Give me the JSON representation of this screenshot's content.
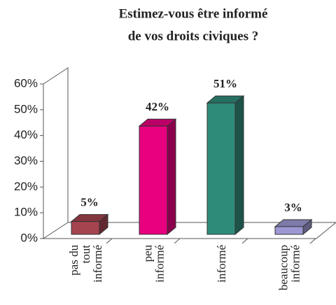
{
  "chart_data": {
    "type": "bar3d",
    "title": [
      "Estimez-vous être informé",
      "de vos droits civiques ?"
    ],
    "categories": [
      [
        "pas du",
        "tout",
        "informé"
      ],
      [
        "peu",
        "informé"
      ],
      [
        "informé"
      ],
      [
        "beaucoup",
        "informé"
      ]
    ],
    "values": [
      5,
      42,
      51,
      3
    ],
    "value_labels": [
      "5%",
      "42%",
      "51%",
      "3%"
    ],
    "colors": [
      "#a5434f",
      "#e8007f",
      "#2f8b79",
      "#9d98d4"
    ],
    "ylim": [
      0,
      60
    ],
    "yticks": [
      {
        "value": 0,
        "label": "0%"
      },
      {
        "value": 10,
        "label": "10%"
      },
      {
        "value": 20,
        "label": "20%"
      },
      {
        "value": 30,
        "label": "30%"
      },
      {
        "value": 40,
        "label": "40%"
      },
      {
        "value": 50,
        "label": "50%"
      },
      {
        "value": 60,
        "label": "60%"
      }
    ],
    "grid": false
  }
}
